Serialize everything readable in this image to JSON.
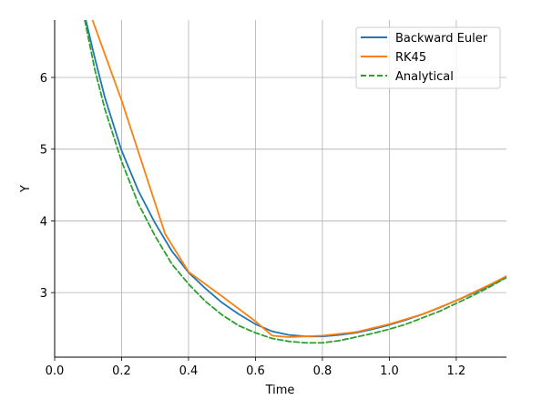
{
  "chart_data": {
    "type": "line",
    "xlabel": "Time",
    "ylabel": "Y",
    "xlim": [
      0.0,
      1.35
    ],
    "ylim": [
      2.1,
      6.8
    ],
    "xticks": [
      0.0,
      0.2,
      0.4,
      0.6,
      0.8,
      1.0,
      1.2
    ],
    "xtick_labels": [
      "0.0",
      "0.2",
      "0.4",
      "0.6",
      "0.8",
      "1.0",
      "1.2"
    ],
    "yticks": [
      3,
      4,
      5,
      6
    ],
    "ytick_labels": [
      "3",
      "4",
      "5",
      "6"
    ],
    "grid": true,
    "legend_position": "top-right",
    "series": [
      {
        "name": "Backward Euler",
        "color": "#1f77b4",
        "style": "solid",
        "x": [
          0.093,
          0.12,
          0.15,
          0.2,
          0.25,
          0.3,
          0.35,
          0.4,
          0.45,
          0.5,
          0.55,
          0.6,
          0.65,
          0.7,
          0.75,
          0.8,
          0.85,
          0.9,
          0.95,
          1.0,
          1.05,
          1.1,
          1.15,
          1.2,
          1.25,
          1.3,
          1.35
        ],
        "y": [
          6.8,
          6.27,
          5.72,
          4.98,
          4.42,
          3.97,
          3.58,
          3.28,
          3.06,
          2.86,
          2.7,
          2.56,
          2.46,
          2.41,
          2.39,
          2.39,
          2.41,
          2.44,
          2.49,
          2.55,
          2.62,
          2.7,
          2.79,
          2.89,
          2.99,
          3.1,
          3.22
        ]
      },
      {
        "name": "RK45",
        "color": "#ff7f0e",
        "style": "solid",
        "x": [
          0.113,
          0.2,
          0.33,
          0.4,
          0.5,
          0.6,
          0.65,
          0.7,
          0.8,
          0.9,
          1.0,
          1.1,
          1.2,
          1.3,
          1.35
        ],
        "y": [
          6.8,
          5.68,
          3.82,
          3.29,
          2.95,
          2.6,
          2.4,
          2.38,
          2.4,
          2.45,
          2.56,
          2.7,
          2.89,
          3.11,
          3.23
        ]
      },
      {
        "name": "Analytical",
        "color": "#2ca02c",
        "style": "dashed",
        "x": [
          0.09,
          0.12,
          0.15,
          0.2,
          0.25,
          0.3,
          0.35,
          0.4,
          0.45,
          0.5,
          0.55,
          0.6,
          0.65,
          0.7,
          0.75,
          0.8,
          0.85,
          0.9,
          0.95,
          1.0,
          1.05,
          1.1,
          1.15,
          1.2,
          1.25,
          1.3,
          1.35
        ],
        "y": [
          6.8,
          6.11,
          5.56,
          4.83,
          4.24,
          3.79,
          3.4,
          3.12,
          2.88,
          2.69,
          2.54,
          2.44,
          2.36,
          2.32,
          2.3,
          2.3,
          2.33,
          2.38,
          2.43,
          2.49,
          2.56,
          2.65,
          2.74,
          2.85,
          2.96,
          3.08,
          3.21
        ]
      }
    ]
  }
}
